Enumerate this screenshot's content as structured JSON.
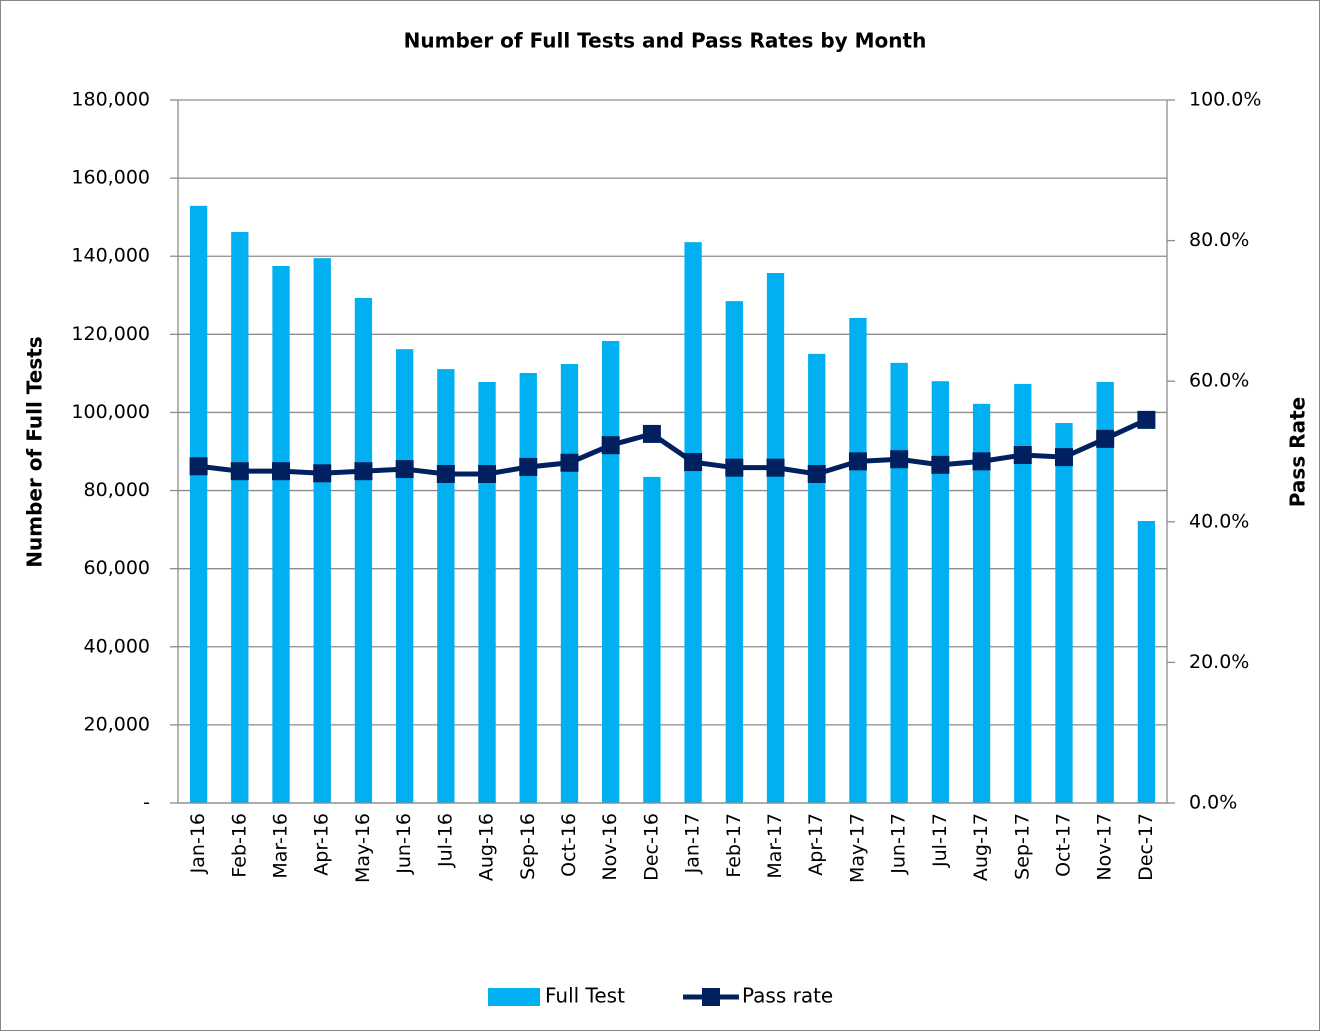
{
  "chart_data": {
    "type": "bar_line",
    "title": "Number of Full Tests and Pass Rates by Month",
    "y_label": "Number of Full Tests",
    "y2_label": "Pass Rate",
    "categories": [
      "Jan-16",
      "Feb-16",
      "Mar-16",
      "Apr-16",
      "May-16",
      "Jun-16",
      "Jul-16",
      "Aug-16",
      "Sep-16",
      "Oct-16",
      "Nov-16",
      "Dec-16",
      "Jan-17",
      "Feb-17",
      "Mar-17",
      "Apr-17",
      "May-17",
      "Jun-17",
      "Jul-17",
      "Aug-17",
      "Sep-17",
      "Oct-17",
      "Nov-17",
      "Dec-17"
    ],
    "series": [
      {
        "name": "Full Test",
        "type": "bar",
        "color": "#00b0f0",
        "values": [
          152900,
          146200,
          137500,
          139500,
          129300,
          116200,
          111100,
          107800,
          110100,
          112400,
          118300,
          83500,
          143600,
          128500,
          135700,
          115000,
          124200,
          112700,
          108000,
          102200,
          107300,
          97300,
          107800,
          72200
        ]
      },
      {
        "name": "Pass rate",
        "type": "line",
        "axis": "y2",
        "color": "#002060",
        "values": [
          47.9,
          47.2,
          47.2,
          46.9,
          47.2,
          47.5,
          46.8,
          46.8,
          47.8,
          48.4,
          50.9,
          52.5,
          48.5,
          47.7,
          47.7,
          46.8,
          48.6,
          48.9,
          48.1,
          48.6,
          49.5,
          49.2,
          51.8,
          54.5
        ]
      }
    ],
    "ylim": [
      0,
      180000
    ],
    "yticks": [
      {
        "value": 0,
        "label": "-"
      },
      {
        "value": 20000,
        "label": "20,000"
      },
      {
        "value": 40000,
        "label": "40,000"
      },
      {
        "value": 60000,
        "label": "60,000"
      },
      {
        "value": 80000,
        "label": "80,000"
      },
      {
        "value": 100000,
        "label": "100,000"
      },
      {
        "value": 120000,
        "label": "120,000"
      },
      {
        "value": 140000,
        "label": "140,000"
      },
      {
        "value": 160000,
        "label": "160,000"
      },
      {
        "value": 180000,
        "label": "180,000"
      }
    ],
    "y2lim": [
      0,
      100
    ],
    "y2ticks": [
      {
        "value": 0,
        "label": "0.0%"
      },
      {
        "value": 20,
        "label": "20.0%"
      },
      {
        "value": 40,
        "label": "40.0%"
      },
      {
        "value": 60,
        "label": "60.0%"
      },
      {
        "value": 80,
        "label": "80.0%"
      },
      {
        "value": 100,
        "label": "100.0%"
      }
    ],
    "grid": true,
    "legend": "bottom"
  }
}
